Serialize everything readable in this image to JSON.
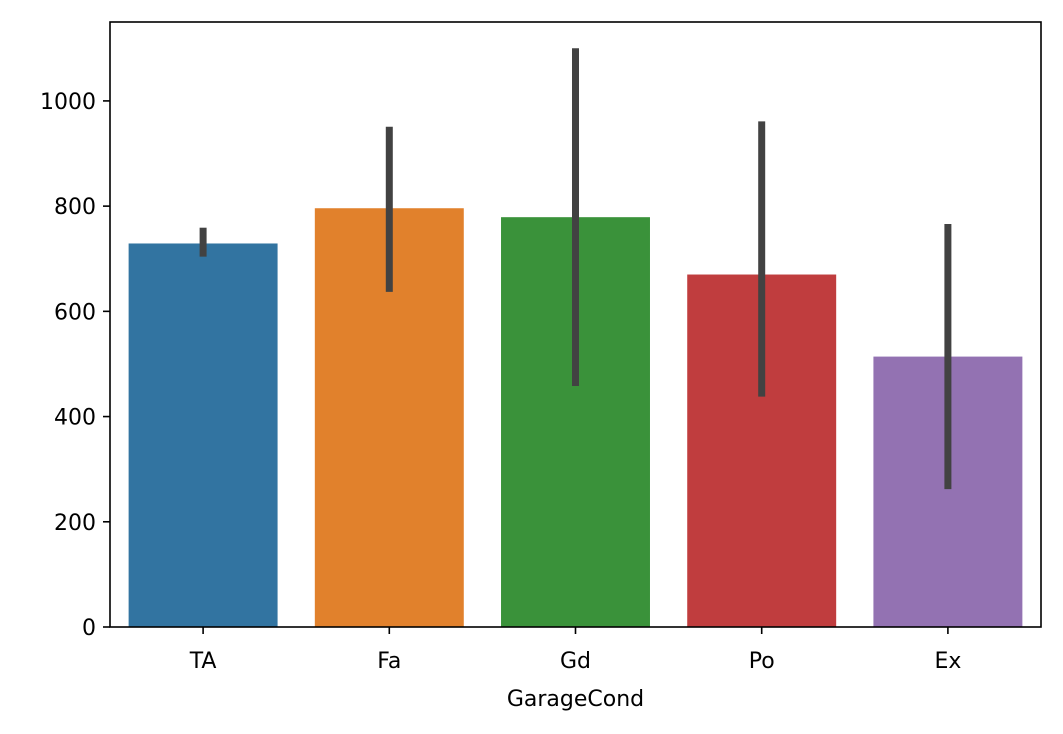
{
  "chart_data": {
    "type": "bar",
    "title": "",
    "xlabel": "GarageCond",
    "ylabel": "",
    "categories": [
      "TA",
      "Fa",
      "Gd",
      "Po",
      "Ex"
    ],
    "values": [
      729,
      796,
      779,
      670,
      514
    ],
    "error_bars": [
      {
        "low": 704,
        "high": 759
      },
      {
        "low": 637,
        "high": 951
      },
      {
        "low": 458,
        "high": 1100
      },
      {
        "low": 438,
        "high": 961
      },
      {
        "low": 262,
        "high": 766
      }
    ],
    "colors": [
      "#3274a1",
      "#e1812c",
      "#3a923a",
      "#c03d3e",
      "#9372b2"
    ],
    "error_bar_color": "#424242",
    "ylim": [
      0,
      1150
    ],
    "yticks": [
      0,
      200,
      400,
      600,
      800,
      1000
    ],
    "grid": false,
    "legend": "none"
  }
}
